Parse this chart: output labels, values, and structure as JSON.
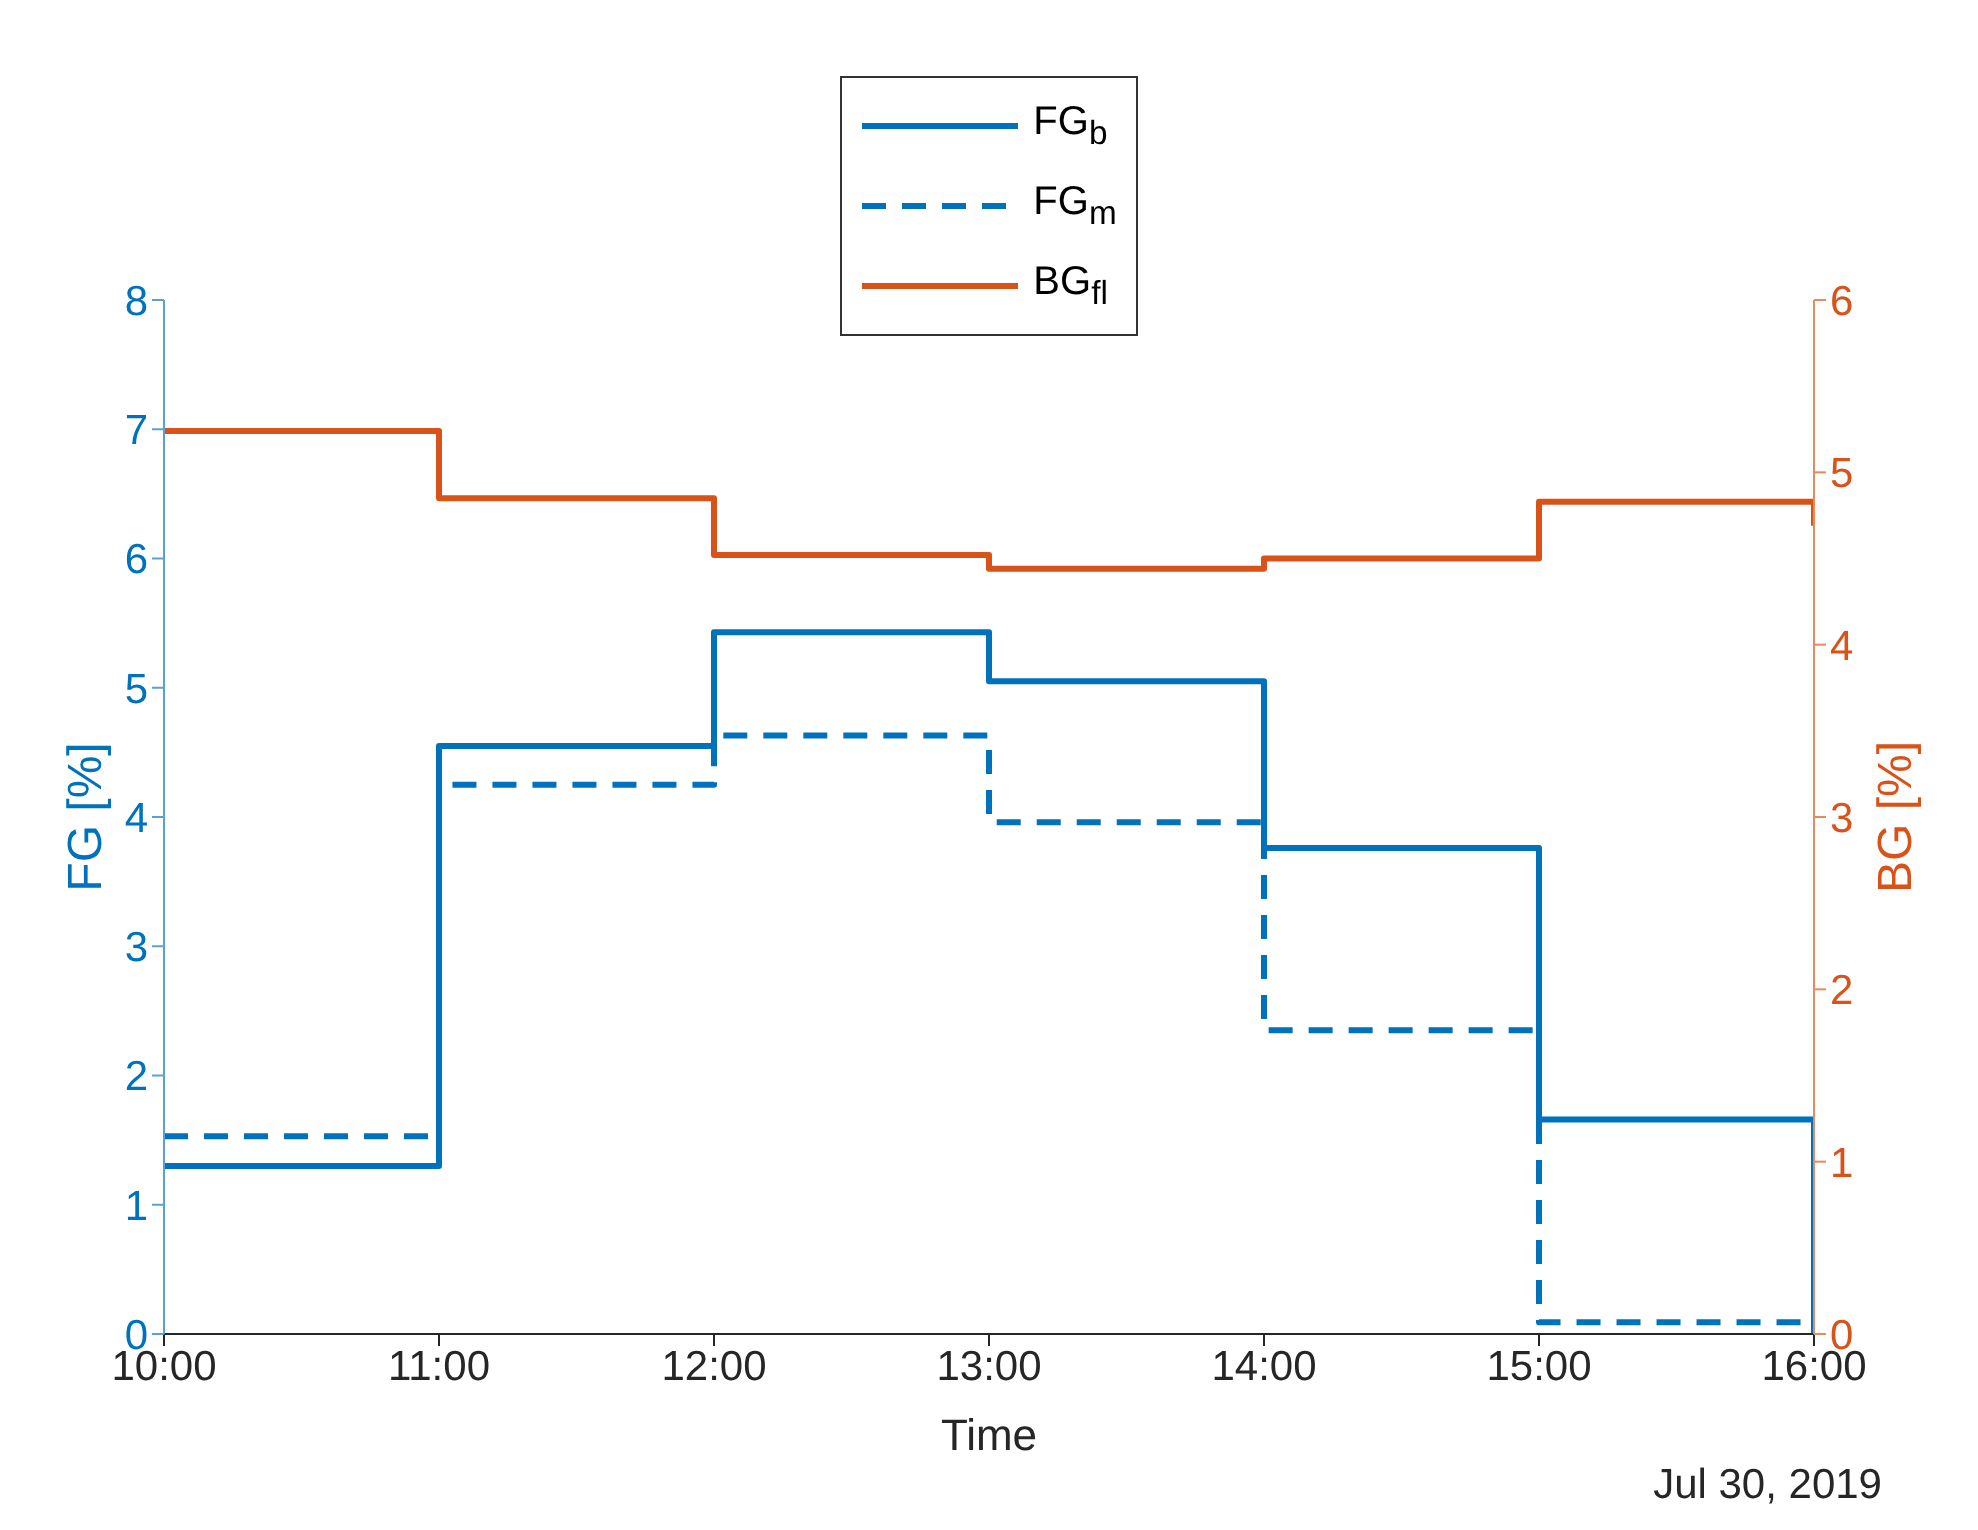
{
  "chart_data": {
    "type": "step",
    "xlabel": "Time",
    "ylabel": "FG [%]",
    "y2label": "BG [%]",
    "x": [
      10,
      11,
      12,
      13,
      14,
      15,
      16
    ],
    "series": [
      {
        "name": "FG$_{b}$",
        "color": "#0072bd",
        "values": [
          1.3,
          4.55,
          5.43,
          5.05,
          3.76,
          1.66,
          0
        ],
        "line_style": "solid"
      },
      {
        "name": "FG$_{m}$",
        "color": "#0072bd",
        "values": [
          1.53,
          4.25,
          4.63,
          3.96,
          2.35,
          0.09,
          0
        ],
        "line_style": "dashed"
      },
      {
        "name": "BG$_{fl}$",
        "color": "#d95319",
        "values": [
          5.24,
          4.85,
          4.52,
          4.44,
          4.5,
          4.83,
          4.69
        ],
        "axis": "y2",
        "line_style": "solid"
      }
    ],
    "xlim": [
      10,
      16
    ],
    "xticks": [
      {
        "value": 10,
        "label": "10:00"
      },
      {
        "value": 11,
        "label": "11:00"
      },
      {
        "value": 12,
        "label": "12:00"
      },
      {
        "value": 13,
        "label": "13:00"
      },
      {
        "value": 14,
        "label": "14:00"
      },
      {
        "value": 15,
        "label": "15:00"
      },
      {
        "value": 16,
        "label": "16:00"
      }
    ],
    "ylim": [
      0,
      8
    ],
    "yticks": [
      0,
      1,
      2,
      3,
      4,
      5,
      6,
      7,
      8
    ],
    "y2lim": [
      0,
      6
    ],
    "y2ticks": [
      0,
      1,
      2,
      3,
      4,
      5,
      6
    ],
    "grid": false,
    "legend": "top",
    "marker": "none",
    "annotations": [
      "Jul 30, 2019"
    ]
  }
}
